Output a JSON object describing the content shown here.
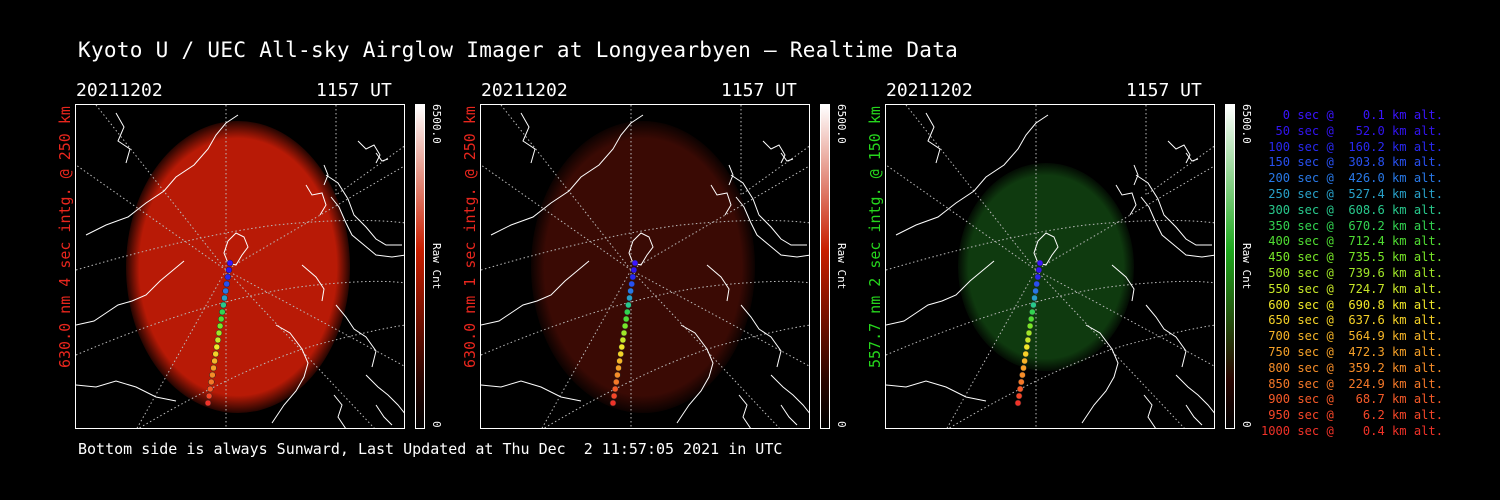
{
  "title": "Kyoto U / UEC All-sky Airglow Imager at Longyearbyen — Realtime Data",
  "panels": [
    {
      "date": "20211202",
      "time": "1157 UT",
      "side_label": "630.0 nm 4 sec intg. @ 250 km",
      "label_color": "#e8261d",
      "colorbar_max": "6500.0",
      "colorbar_min": "0",
      "colorbar_unit": "Raw Cnt",
      "colorbar_tint": "#c81e00",
      "glow_color": "#b81a06",
      "glow_opacity": 1.0
    },
    {
      "date": "20211202",
      "time": "1157 UT",
      "side_label": "630.0 nm 1 sec intg. @ 250 km",
      "label_color": "#e8261d",
      "colorbar_max": "6500.0",
      "colorbar_min": "0",
      "colorbar_unit": "Raw Cnt",
      "colorbar_tint": "#c81e00",
      "glow_color": "#3a0a04",
      "glow_opacity": 1.0
    },
    {
      "date": "20211202",
      "time": "1157 UT",
      "side_label": "557.7 nm 2 sec intg. @ 150 km",
      "label_color": "#26d61d",
      "colorbar_max": "6500.0",
      "colorbar_min": "0",
      "colorbar_unit": "Raw Cnt",
      "colorbar_tint": "#1ea81e",
      "glow_color": "#0f3a0f",
      "glow_opacity": 1.0
    }
  ],
  "legend": [
    {
      "text": "   0 sec @    0.1 km alt.",
      "color": "#3a14ff"
    },
    {
      "text": "  50 sec @   52.0 km alt.",
      "color": "#3214f0"
    },
    {
      "text": " 100 sec @  160.2 km alt.",
      "color": "#2828f0"
    },
    {
      "text": " 150 sec @  303.8 km alt.",
      "color": "#2850f0"
    },
    {
      "text": " 200 sec @  426.0 km alt.",
      "color": "#2878e6"
    },
    {
      "text": " 250 sec @  527.4 km alt.",
      "color": "#28a0c8"
    },
    {
      "text": " 300 sec @  608.6 km alt.",
      "color": "#28c88c"
    },
    {
      "text": " 350 sec @  670.2 km alt.",
      "color": "#32d250"
    },
    {
      "text": " 400 sec @  712.4 km alt.",
      "color": "#50dc32"
    },
    {
      "text": " 450 sec @  735.5 km alt.",
      "color": "#78e628"
    },
    {
      "text": " 500 sec @  739.6 km alt.",
      "color": "#a0e628"
    },
    {
      "text": " 550 sec @  724.7 km alt.",
      "color": "#c8e628"
    },
    {
      "text": " 600 sec @  690.8 km alt.",
      "color": "#f0e628"
    },
    {
      "text": " 650 sec @  637.6 km alt.",
      "color": "#f5d228"
    },
    {
      "text": " 700 sec @  564.9 km alt.",
      "color": "#f5b428"
    },
    {
      "text": " 750 sec @  472.3 km alt.",
      "color": "#f5a028"
    },
    {
      "text": " 800 sec @  359.2 km alt.",
      "color": "#f58c28"
    },
    {
      "text": " 850 sec @  224.9 km alt.",
      "color": "#f57828"
    },
    {
      "text": " 900 sec @   68.7 km alt.",
      "color": "#f55a28"
    },
    {
      "text": " 950 sec @    6.2 km alt.",
      "color": "#f54628"
    },
    {
      "text": "1000 sec @    0.4 km alt.",
      "color": "#f03228"
    }
  ],
  "footer": "Bottom side is always Sunward, Last Updated at Thu Dec  2 11:57:05 2021 in UTC"
}
